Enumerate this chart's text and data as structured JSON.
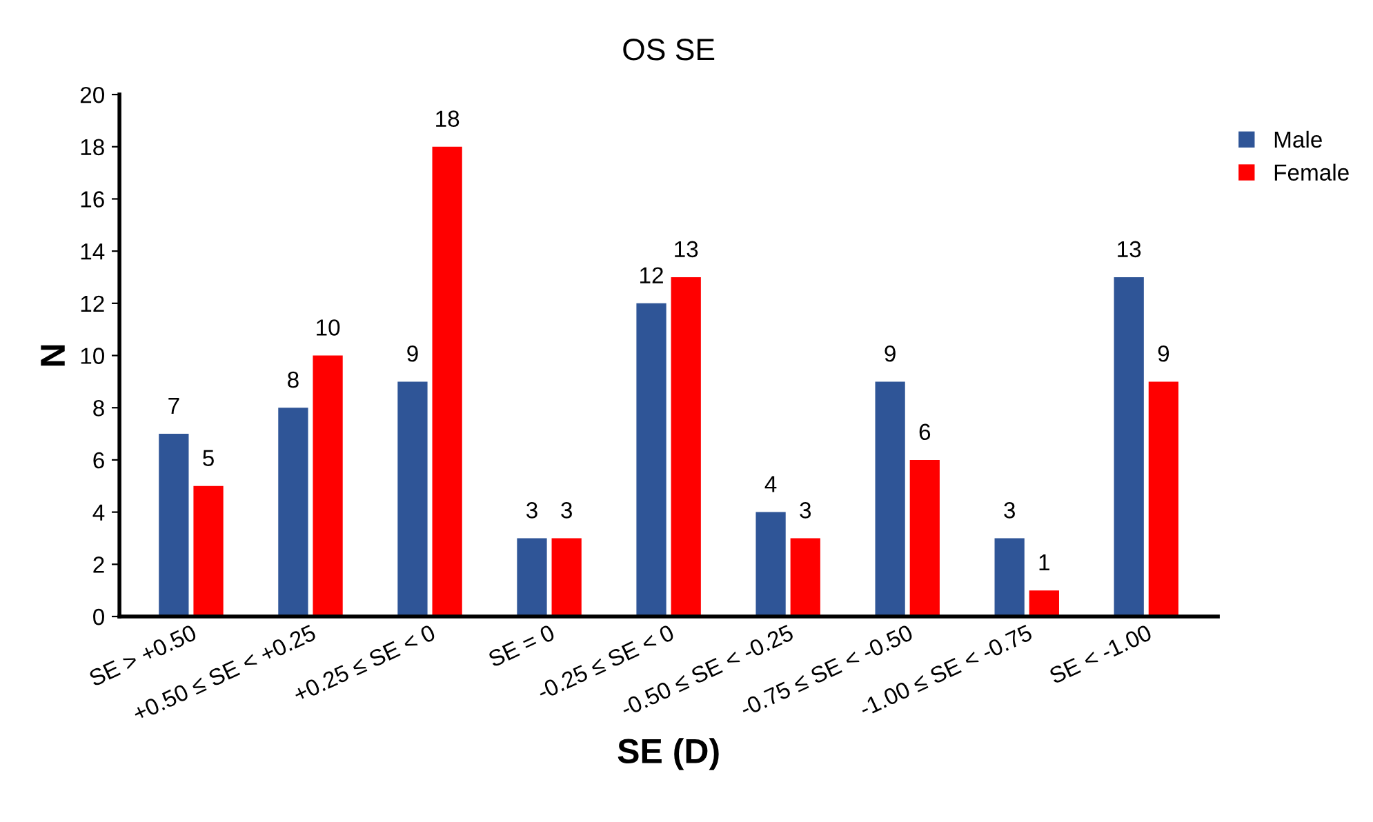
{
  "chart_data": {
    "type": "bar",
    "title": "OS SE",
    "xlabel": "SE (D)",
    "ylabel": "N",
    "categories": [
      "SE > +0.50",
      "+0.50 ≤ SE < +0.25",
      "+0.25 ≤ SE < 0",
      "SE = 0",
      "-0.25 ≤ SE < 0",
      "-0.50 ≤ SE < -0.25",
      "-0.75 ≤ SE < -0.50",
      "-1.00 ≤ SE < -0.75",
      "SE < -1.00"
    ],
    "series": [
      {
        "name": "Male",
        "color": "#2f5597",
        "values": [
          7,
          8,
          9,
          3,
          12,
          4,
          9,
          3,
          13
        ]
      },
      {
        "name": "Female",
        "color": "#ff0000",
        "values": [
          5,
          10,
          18,
          3,
          13,
          3,
          6,
          1,
          9
        ]
      }
    ],
    "ylim": [
      0,
      20
    ],
    "yticks": [
      0,
      2,
      4,
      6,
      8,
      10,
      12,
      14,
      16,
      18,
      20
    ],
    "data_labels": true,
    "grid": false,
    "legend": "top right"
  }
}
